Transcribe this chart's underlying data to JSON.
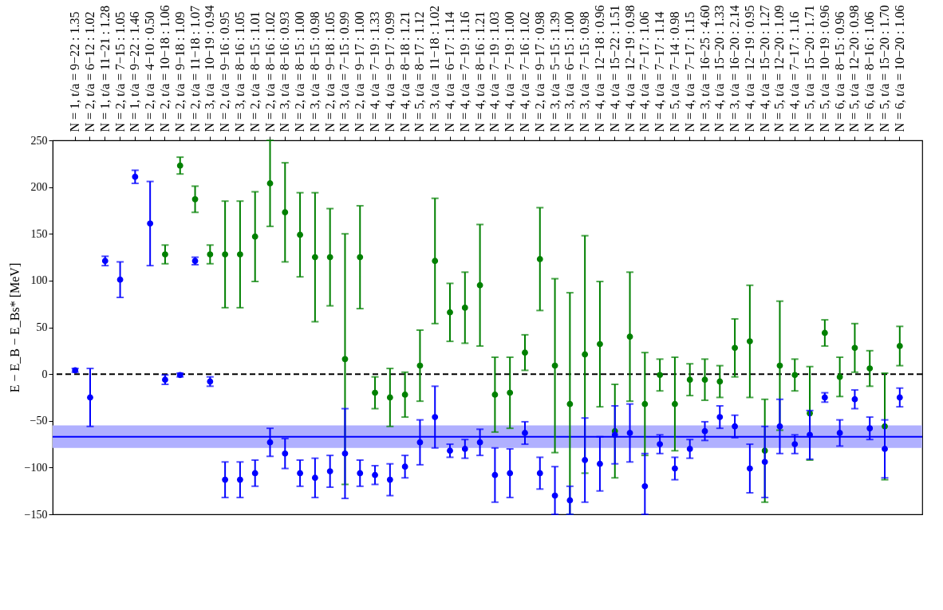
{
  "chart_data": {
    "type": "scatter",
    "ylabel": "E − E_B − E_Bs* [MeV]",
    "categories": [
      "N = 1, t/a = 9−22 : 1.35",
      "N = 2, t/a = 6−12 : 1.02",
      "N = 1, t/a = 11−21 : 1.28",
      "N = 2, t/a = 7−15 : 1.05",
      "N = 1, t/a = 9−22 : 1.46",
      "N = 2, t/a = 4−10 : 0.50",
      "N = 2, t/a = 10−18 : 1.06",
      "N = 2, t/a = 9−18 : 1.09",
      "N = 2, t/a = 11−18 : 1.07",
      "N = 3, t/a = 10−19 : 0.94",
      "N = 2, t/a = 9−16 : 0.95",
      "N = 3, t/a = 8−16 : 1.05",
      "N = 2, t/a = 8−15 : 1.01",
      "N = 2, t/a = 8−16 : 1.02",
      "N = 3, t/a = 8−16 : 0.93",
      "N = 2, t/a = 8−15 : 1.00",
      "N = 3, t/a = 8−15 : 0.98",
      "N = 2, t/a = 9−18 : 1.05",
      "N = 3, t/a = 7−15 : 0.99",
      "N = 2, t/a = 9−17 : 1.00",
      "N = 4, t/a = 7−19 : 1.33",
      "N = 4, t/a = 9−17 : 0.99",
      "N = 4, t/a = 8−18 : 1.21",
      "N = 5, t/a = 8−17 : 1.12",
      "N = 3, t/a = 11−18 : 1.02",
      "N = 4, t/a = 6−17 : 1.14",
      "N = 4, t/a = 7−19 : 1.16",
      "N = 4, t/a = 8−16 : 1.21",
      "N = 4, t/a = 7−19 : 1.03",
      "N = 4, t/a = 7−19 : 1.00",
      "N = 4, t/a = 7−16 : 1.02",
      "N = 2, t/a = 9−17 : 0.98",
      "N = 3, t/a = 5−15 : 1.39",
      "N = 3, t/a = 6−15 : 1.00",
      "N = 3, t/a = 7−15 : 0.98",
      "N = 4, t/a = 12−18 : 0.96",
      "N = 4, t/a = 15−22 : 1.51",
      "N = 4, t/a = 12−19 : 0.98",
      "N = 4, t/a = 7−17 : 1.06",
      "N = 4, t/a = 7−17 : 1.14",
      "N = 5, t/a = 7−14 : 0.98",
      "N = 4, t/a = 7−17 : 1.15",
      "N = 3, t/a = 16−25 : 4.60",
      "N = 4, t/a = 15−20 : 1.33",
      "N = 3, t/a = 16−20 : 2.14",
      "N = 4, t/a = 12−19 : 0.95",
      "N = 4, t/a = 15−20 : 1.27",
      "N = 5, t/a = 12−20 : 1.09",
      "N = 4, t/a = 7−17 : 1.16",
      "N = 5, t/a = 15−20 : 1.71",
      "N = 5, t/a = 10−19 : 0.96",
      "N = 6, t/a = 8−15 : 0.96",
      "N = 5, t/a = 12−20 : 0.98",
      "N = 6, t/a = 8−16 : 1.06",
      "N = 5, t/a = 15−20 : 1.70",
      "N = 6, t/a = 10−20 : 1.06"
    ],
    "series": [
      {
        "color": "#0000ff",
        "marker": "circle",
        "values": [
          4,
          -25,
          121,
          101,
          211,
          161,
          -6,
          -1,
          121,
          -8,
          null,
          null,
          null,
          null,
          null,
          null,
          null,
          null,
          null,
          null,
          null,
          null,
          null,
          null,
          null,
          null,
          null,
          null,
          null,
          null,
          null,
          null,
          null,
          null,
          null,
          null,
          null,
          null,
          null,
          null,
          null,
          null,
          null,
          null,
          null,
          null,
          null,
          null,
          null,
          null,
          null,
          null,
          null,
          null,
          null,
          null
        ],
        "errors": [
          2,
          31,
          5,
          19,
          7,
          45,
          5,
          2,
          4,
          5,
          null,
          null,
          null,
          null,
          null,
          null,
          null,
          null,
          null,
          null,
          null,
          null,
          null,
          null,
          null,
          null,
          null,
          null,
          null,
          null,
          null,
          null,
          null,
          null,
          null,
          null,
          null,
          null,
          null,
          null,
          null,
          null,
          null,
          null,
          null,
          null,
          null,
          null,
          null,
          null,
          null,
          null,
          null,
          null,
          null,
          null
        ]
      },
      {
        "color": "#008000",
        "marker": "circle",
        "values": [
          null,
          null,
          null,
          null,
          null,
          null,
          128,
          223,
          187,
          128,
          128,
          128,
          147,
          204,
          173,
          149,
          125,
          125,
          16,
          125,
          -20,
          -25,
          -22,
          9,
          121,
          66,
          71,
          95,
          -22,
          -20,
          23,
          123,
          9,
          -32,
          21,
          32,
          -61,
          40,
          -32,
          -1,
          -32,
          -6,
          -6,
          -8,
          28,
          35,
          -82,
          9,
          -1,
          -42,
          44,
          -3,
          28,
          6,
          -56,
          30
        ],
        "errors": [
          null,
          null,
          null,
          null,
          null,
          null,
          10,
          9,
          14,
          10,
          57,
          57,
          48,
          46,
          53,
          45,
          69,
          52,
          134,
          55,
          17,
          31,
          24,
          38,
          67,
          31,
          38,
          65,
          40,
          38,
          19,
          55,
          93,
          [
            -150,
            87
          ],
          127,
          67,
          50,
          69,
          55,
          17,
          50,
          17,
          22,
          17,
          31,
          60,
          55,
          69,
          17,
          50,
          14,
          21,
          26,
          19,
          57,
          21
        ]
      },
      {
        "color": "#0000ff",
        "marker": "circle",
        "values": [
          null,
          null,
          null,
          null,
          null,
          null,
          null,
          null,
          null,
          null,
          -113,
          -113,
          -106,
          -73,
          -85,
          -106,
          -111,
          -104,
          -85,
          -106,
          -108,
          -113,
          -99,
          -73,
          -46,
          -82,
          -80,
          -73,
          -108,
          -106,
          -63,
          -106,
          -130,
          -135,
          -92,
          -96,
          -65,
          -63,
          -120,
          -75,
          -101,
          -80,
          -61,
          -46,
          -56,
          -101,
          -94,
          -56,
          -75,
          -65,
          -25,
          -63,
          -27,
          -58,
          -80,
          -25
        ],
        "errors": [
          null,
          null,
          null,
          null,
          null,
          null,
          null,
          null,
          null,
          null,
          19,
          19,
          14,
          15,
          16,
          14,
          21,
          17,
          48,
          14,
          10,
          17,
          12,
          24,
          33,
          7,
          10,
          14,
          29,
          26,
          12,
          17,
          [
            -150,
            -99
          ],
          [
            -150,
            -120
          ],
          45,
          29,
          31,
          31,
          [
            -150,
            -85
          ],
          10,
          12,
          10,
          10,
          12,
          12,
          26,
          38,
          29,
          10,
          26,
          5,
          14,
          10,
          12,
          31,
          10
        ]
      }
    ],
    "ylim": [
      -150,
      250
    ],
    "yticks": [
      -150,
      -100,
      -50,
      0,
      50,
      100,
      150,
      200,
      250
    ],
    "grid": false,
    "ref_lines": [
      {
        "axis": "y",
        "value": 0,
        "color": "#000000",
        "line_style": "dashed"
      },
      {
        "axis": "y",
        "value": -67,
        "color": "#0000ff",
        "line_style": "solid"
      }
    ],
    "bands": [
      {
        "axis": "y",
        "from": -79,
        "to": -55,
        "color": "#b0b0ff"
      }
    ]
  }
}
